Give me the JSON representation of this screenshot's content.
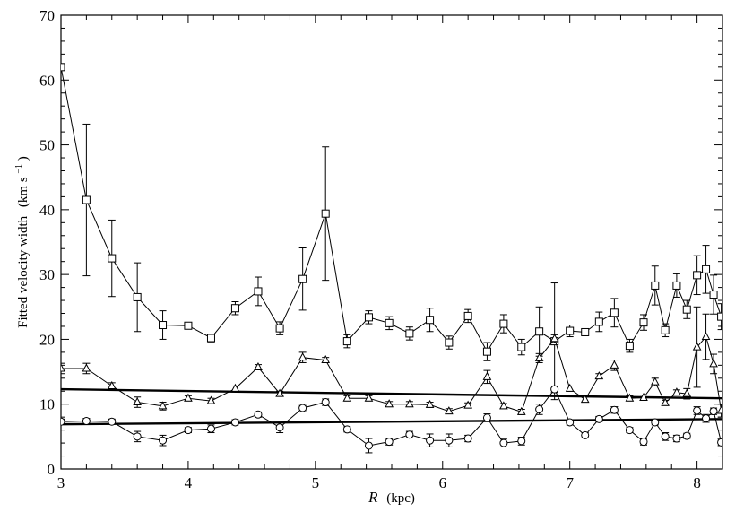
{
  "chart_data": {
    "type": "scatter",
    "title": "",
    "xlabel": "R",
    "xlabel_unit": "(kpc)",
    "ylabel": "Fitted velocity width",
    "ylabel_unit_pre": "(km s",
    "ylabel_unit_sup": "−1",
    "ylabel_unit_post": ")",
    "xlim": [
      3.0,
      8.2
    ],
    "ylim": [
      0,
      70
    ],
    "x_ticks": [
      3,
      4,
      5,
      6,
      7,
      8
    ],
    "y_ticks": [
      0,
      10,
      20,
      30,
      40,
      50,
      60,
      70
    ],
    "grid": false,
    "legend": "none",
    "series": [
      {
        "marker": "square",
        "points": [
          [
            3.0,
            62.0,
            0.5
          ],
          [
            3.2,
            41.5,
            11.7
          ],
          [
            3.4,
            32.5,
            5.9
          ],
          [
            3.6,
            26.5,
            5.3
          ],
          [
            3.8,
            22.2,
            2.2
          ],
          [
            4.0,
            22.1,
            0.4
          ],
          [
            4.18,
            20.2,
            0.6
          ],
          [
            4.37,
            24.8,
            1.0
          ],
          [
            4.55,
            27.4,
            2.2
          ],
          [
            4.72,
            21.7,
            1.0
          ],
          [
            4.9,
            29.3,
            4.8
          ],
          [
            5.08,
            39.4,
            10.3
          ],
          [
            5.25,
            19.7,
            1.0
          ],
          [
            5.42,
            23.4,
            1.0
          ],
          [
            5.58,
            22.5,
            1.0
          ],
          [
            5.74,
            20.9,
            1.0
          ],
          [
            5.9,
            23.0,
            1.8
          ],
          [
            6.05,
            19.5,
            1.0
          ],
          [
            6.2,
            23.6,
            1.0
          ],
          [
            6.35,
            18.1,
            1.4
          ],
          [
            6.48,
            22.4,
            1.4
          ],
          [
            6.62,
            18.8,
            1.2
          ],
          [
            6.76,
            21.2,
            3.8
          ],
          [
            6.88,
            19.7,
            9.0
          ],
          [
            7.0,
            21.3,
            0.9
          ],
          [
            7.12,
            21.1,
            0.4
          ],
          [
            7.23,
            22.7,
            1.5
          ],
          [
            7.35,
            24.1,
            2.2
          ],
          [
            7.47,
            19.0,
            1.0
          ],
          [
            7.58,
            22.6,
            1.2
          ],
          [
            7.67,
            28.3,
            3.0
          ],
          [
            7.75,
            21.4,
            1.0
          ],
          [
            7.84,
            28.3,
            1.8
          ],
          [
            7.92,
            24.6,
            1.4
          ],
          [
            8.0,
            29.9,
            3.0
          ],
          [
            8.07,
            30.8,
            3.7
          ],
          [
            8.13,
            26.9,
            3.0
          ],
          [
            8.19,
            23.5,
            2.0
          ]
        ]
      },
      {
        "marker": "triangle",
        "points": [
          [
            3.0,
            15.5,
            0.8
          ],
          [
            3.2,
            15.5,
            0.8
          ],
          [
            3.4,
            12.8,
            0.5
          ],
          [
            3.6,
            10.3,
            0.8
          ],
          [
            3.8,
            9.7,
            0.6
          ],
          [
            4.0,
            10.9,
            0.4
          ],
          [
            4.18,
            10.5,
            0.4
          ],
          [
            4.37,
            12.4,
            0.4
          ],
          [
            4.55,
            15.7,
            0.4
          ],
          [
            4.72,
            11.6,
            0.4
          ],
          [
            4.9,
            17.2,
            0.8
          ],
          [
            5.08,
            16.8,
            0.4
          ],
          [
            5.25,
            10.9,
            0.4
          ],
          [
            5.42,
            10.9,
            0.4
          ],
          [
            5.58,
            10.0,
            0.4
          ],
          [
            5.74,
            10.0,
            0.4
          ],
          [
            5.9,
            9.9,
            0.4
          ],
          [
            6.05,
            8.9,
            0.4
          ],
          [
            6.2,
            9.8,
            0.4
          ],
          [
            6.35,
            14.2,
            1.0
          ],
          [
            6.48,
            9.7,
            0.4
          ],
          [
            6.62,
            8.8,
            0.4
          ],
          [
            6.76,
            17.1,
            0.7
          ],
          [
            6.88,
            20.1,
            0.6
          ],
          [
            7.0,
            12.4,
            0.4
          ],
          [
            7.12,
            10.7,
            0.4
          ],
          [
            7.23,
            14.3,
            0.4
          ],
          [
            7.35,
            16.0,
            0.8
          ],
          [
            7.47,
            10.9,
            0.4
          ],
          [
            7.58,
            11.0,
            0.4
          ],
          [
            7.67,
            13.4,
            0.6
          ],
          [
            7.75,
            10.2,
            0.4
          ],
          [
            7.84,
            11.8,
            0.4
          ],
          [
            7.92,
            11.6,
            0.8
          ],
          [
            8.0,
            18.8,
            6.2
          ],
          [
            8.07,
            20.4,
            3.5
          ],
          [
            8.13,
            16.2,
            1.5
          ],
          [
            8.19,
            9.0,
            1.0
          ]
        ]
      },
      {
        "marker": "circle",
        "points": [
          [
            3.0,
            7.3,
            0.4
          ],
          [
            3.2,
            7.4,
            0.4
          ],
          [
            3.4,
            7.3,
            0.4
          ],
          [
            3.6,
            5.0,
            0.8
          ],
          [
            3.8,
            4.4,
            0.8
          ],
          [
            4.0,
            6.0,
            0.4
          ],
          [
            4.18,
            6.2,
            0.6
          ],
          [
            4.37,
            7.2,
            0.4
          ],
          [
            4.55,
            8.4,
            0.4
          ],
          [
            4.72,
            6.4,
            0.8
          ],
          [
            4.9,
            9.4,
            0.4
          ],
          [
            5.08,
            10.3,
            0.5
          ],
          [
            5.25,
            6.1,
            0.4
          ],
          [
            5.42,
            3.6,
            1.1
          ],
          [
            5.58,
            4.2,
            0.5
          ],
          [
            5.74,
            5.3,
            0.5
          ],
          [
            5.9,
            4.4,
            1.0
          ],
          [
            6.05,
            4.4,
            1.0
          ],
          [
            6.2,
            4.7,
            0.5
          ],
          [
            6.35,
            7.9,
            0.6
          ],
          [
            6.48,
            4.0,
            0.6
          ],
          [
            6.62,
            4.3,
            0.6
          ],
          [
            6.76,
            9.2,
            0.8
          ],
          [
            6.88,
            12.3,
            0.5
          ],
          [
            7.0,
            7.2,
            0.4
          ],
          [
            7.12,
            5.2,
            0.4
          ],
          [
            7.23,
            7.7,
            0.4
          ],
          [
            7.35,
            9.1,
            0.5
          ],
          [
            7.47,
            6.0,
            0.4
          ],
          [
            7.58,
            4.2,
            0.5
          ],
          [
            7.67,
            7.2,
            0.4
          ],
          [
            7.75,
            5.0,
            0.6
          ],
          [
            7.84,
            4.7,
            0.5
          ],
          [
            7.92,
            5.1,
            0.4
          ],
          [
            8.0,
            9.0,
            0.6
          ],
          [
            8.07,
            7.8,
            0.6
          ],
          [
            8.13,
            8.9,
            0.5
          ],
          [
            8.19,
            4.1,
            0.5
          ]
        ]
      }
    ],
    "fit_lines": [
      {
        "x": [
          3.0,
          8.2
        ],
        "y": [
          12.3,
          10.9
        ]
      },
      {
        "x": [
          3.0,
          8.2
        ],
        "y": [
          6.9,
          7.7
        ]
      }
    ]
  }
}
